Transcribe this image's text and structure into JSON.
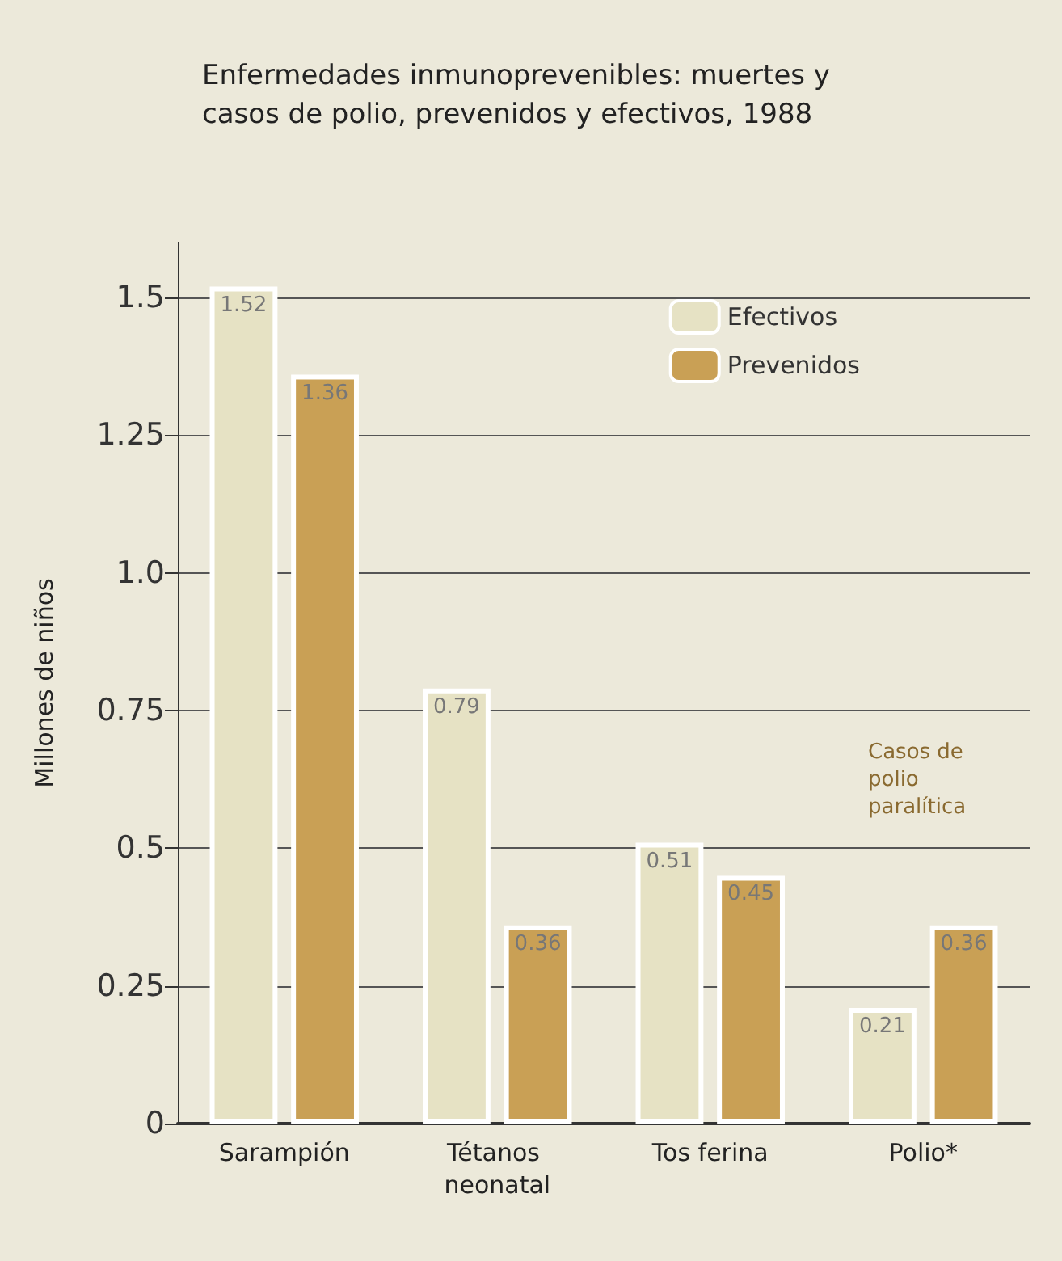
{
  "chart_data": {
    "type": "bar",
    "title": "Enfermedades inmunoprevenibles: muertes y casos de polio, prevenidos y efectivos, 1988",
    "ylabel": "Millones de niños",
    "categories": [
      "Sarampión",
      "Tétanos neonatal",
      "Tos ferina",
      "Polio*"
    ],
    "series": [
      {
        "name": "Efectivos",
        "color": "#e6e2c4",
        "values": [
          1.52,
          0.79,
          0.51,
          0.21
        ]
      },
      {
        "name": "Prevenidos",
        "color": "#c9a055",
        "values": [
          1.36,
          0.36,
          0.45,
          0.36
        ]
      }
    ],
    "ylim": [
      0,
      1.6
    ],
    "yticks": [
      0,
      0.25,
      0.5,
      0.75,
      {
        "value": 1,
        "label": "1.0"
      },
      1.25,
      1.5
    ],
    "grid": "y",
    "legend": "top right",
    "data_labels": true,
    "annotations": [
      "Casos de polio paralítica"
    ]
  }
}
